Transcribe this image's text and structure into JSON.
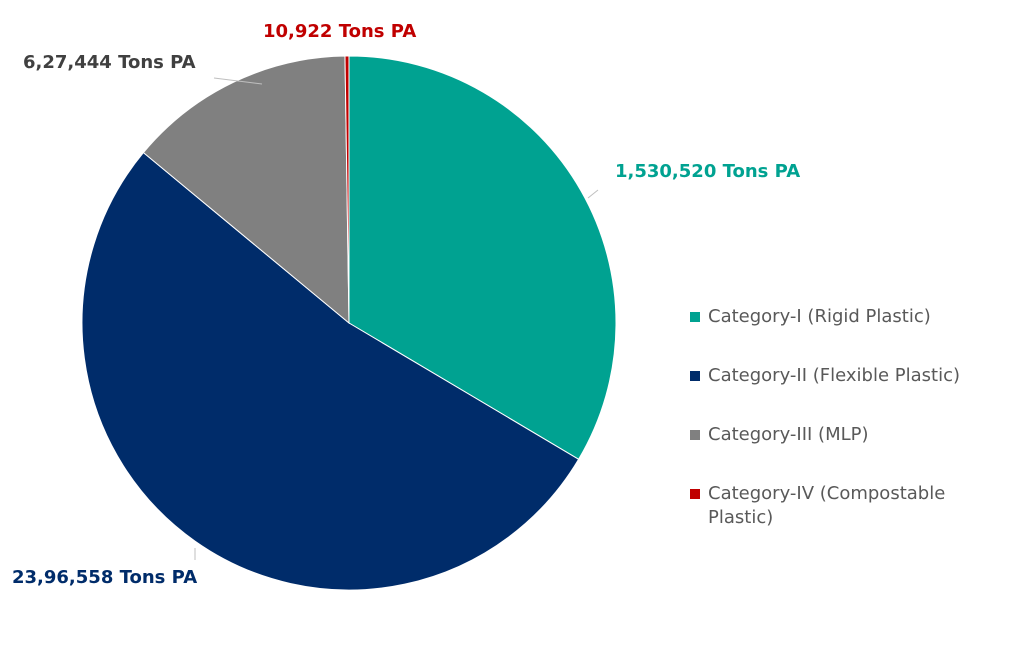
{
  "chart_data": {
    "type": "pie",
    "categories": [
      "Category-I (Rigid Plastic)",
      "Category-II (Flexible Plastic)",
      "Category-III (MLP)",
      "Category-IV (Compostable Plastic)"
    ],
    "values": [
      1530520,
      2396558,
      627444,
      10922
    ],
    "value_labels": [
      "1,530,520 Tons PA",
      "23,96,558 Tons PA",
      "6,27,444 Tons PA",
      "10,922 Tons PA"
    ],
    "colors": [
      "#00a291",
      "#002c6a",
      "#808080",
      "#c00000"
    ],
    "legend": "right"
  }
}
